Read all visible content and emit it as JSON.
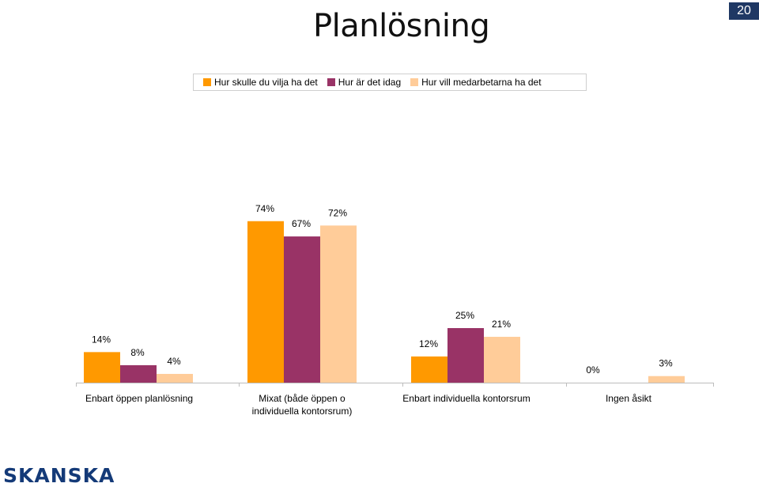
{
  "page": {
    "title": "Planlösning",
    "page_number": "20",
    "logo_text": "SKANSKA"
  },
  "colors": {
    "series1": "#FF9900",
    "series2": "#993366",
    "series3": "#FFCC99",
    "axis": "#bdbdbd"
  },
  "chart_data": {
    "type": "bar",
    "categories": [
      "Enbart öppen planlösning",
      "Mixat (både öppen o individuella kontorsrum)",
      "Enbart individuella kontorsrum",
      "Ingen åsikt"
    ],
    "series": [
      {
        "name": "Hur skulle du vilja ha det",
        "values": [
          14,
          74,
          12,
          0
        ],
        "labels": [
          "14%",
          "74%",
          "12%",
          "0%"
        ]
      },
      {
        "name": "Hur är det idag",
        "values": [
          8,
          67,
          25,
          0
        ],
        "labels": [
          "8%",
          "67%",
          "25%",
          ""
        ]
      },
      {
        "name": "Hur vill medarbetarna ha det",
        "values": [
          4,
          72,
          21,
          3
        ],
        "labels": [
          "4%",
          "72%",
          "21%",
          "3%"
        ]
      }
    ],
    "ylim": [
      0,
      100
    ],
    "unit": "%",
    "legend_position": "top",
    "grid": false
  }
}
